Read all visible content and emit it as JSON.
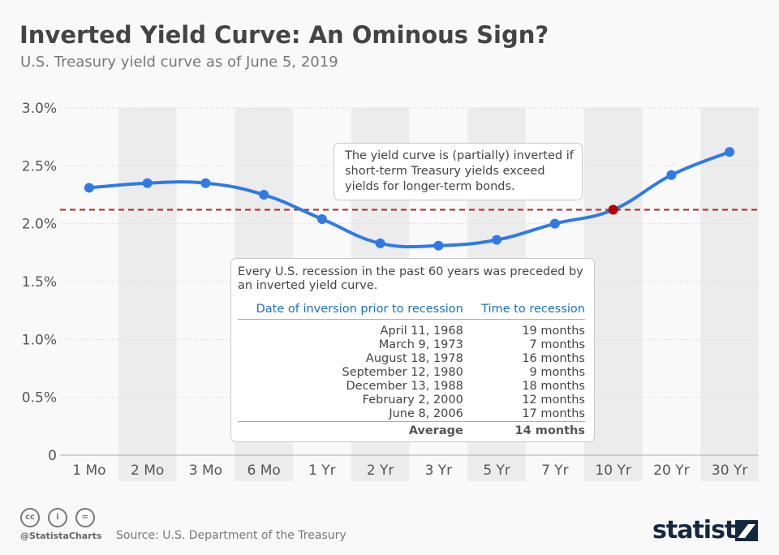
{
  "header": {
    "title": "Inverted Yield Curve: An Ominous Sign?",
    "subtitle": "U.S. Treasury yield curve as of June 5, 2019"
  },
  "chart_data": {
    "type": "line",
    "title": "Inverted Yield Curve: An Ominous Sign?",
    "subtitle": "U.S. Treasury yield curve as of June 5, 2019",
    "categories": [
      "1 Mo",
      "2 Mo",
      "3 Mo",
      "6 Mo",
      "1 Yr",
      "2 Yr",
      "3 Yr",
      "5 Yr",
      "7 Yr",
      "10 Yr",
      "20 Yr",
      "30 Yr"
    ],
    "values": [
      2.31,
      2.35,
      2.35,
      2.25,
      2.04,
      1.83,
      1.81,
      1.86,
      2.0,
      2.12,
      2.42,
      2.62
    ],
    "ylim": [
      0,
      3.0
    ],
    "yticks": [
      0,
      0.5,
      1.0,
      1.5,
      2.0,
      2.5,
      3.0
    ],
    "ytick_labels": [
      "0",
      "0.5%",
      "1.0%",
      "1.5%",
      "2.0%",
      "2.5%",
      "3.0%"
    ],
    "reference_line": {
      "value": 2.12,
      "style": "dashed",
      "color": "#b22222"
    },
    "highlight_point": "10 Yr",
    "grid": true,
    "line_color": "#2f7ae5",
    "highlight_color": "#b00000",
    "band_color": "#ececec"
  },
  "annotations": {
    "note1": "The yield curve is (partially) inverted if short-term Treasury yields exceed yields for longer-term bonds.",
    "note2": "Every U.S. recession in the past 60 years was preceded by an inverted yield curve.",
    "table": {
      "headers": [
        "Date of inversion prior to recession",
        "Time to recession"
      ],
      "rows": [
        [
          "April 11, 1968",
          "19 months"
        ],
        [
          "March 9, 1973",
          "7 months"
        ],
        [
          "August 18, 1978",
          "16 months"
        ],
        [
          "September 12, 1980",
          "9 months"
        ],
        [
          "December 13, 1988",
          "18 months"
        ],
        [
          "February 2, 2000",
          "12 months"
        ],
        [
          "June 8, 2006",
          "17 months"
        ]
      ],
      "footer": [
        "Average",
        "14 months"
      ]
    }
  },
  "footer": {
    "handle": "@StatistaCharts",
    "source": "Source: U.S. Department of the Treasury",
    "logo": "statista",
    "cc_icons": [
      "cc",
      "by",
      "nd"
    ]
  }
}
